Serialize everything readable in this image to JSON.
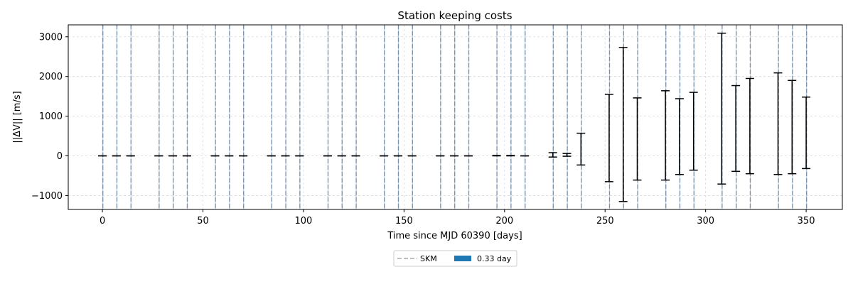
{
  "chart_data": {
    "type": "errorbar",
    "title": "Station keeping costs",
    "xlabel": "Time since MJD 60390 [days]",
    "ylabel": "||ΔV|| [m/s]",
    "xlim": [
      -17,
      368
    ],
    "ylim": [
      -1350,
      3300
    ],
    "xticks": [
      0,
      50,
      100,
      150,
      200,
      250,
      300,
      350
    ],
    "yticks": [
      -1000,
      0,
      1000,
      2000,
      3000
    ],
    "grid": true,
    "legend": {
      "placement": "bottom-center",
      "entries": [
        {
          "label": "SKM",
          "style": "dashed-line",
          "color": "#aaaaaa"
        },
        {
          "label": "0.33 day",
          "style": "patch",
          "color": "#1f77b4"
        }
      ]
    },
    "skm_times": [
      0,
      7,
      14,
      28,
      35,
      42,
      56,
      63,
      70,
      84,
      91,
      98,
      112,
      119,
      126,
      140,
      147,
      154,
      168,
      175,
      182,
      196,
      203,
      210,
      224,
      231,
      238,
      252,
      259,
      266,
      280,
      287,
      294,
      308,
      315,
      322,
      336,
      343,
      350
    ],
    "window_days": 0.33,
    "error_bars": [
      {
        "x": 0,
        "low": 0,
        "high": 0
      },
      {
        "x": 7,
        "low": 0,
        "high": 0
      },
      {
        "x": 14,
        "low": 0,
        "high": 0
      },
      {
        "x": 28,
        "low": 0,
        "high": 0
      },
      {
        "x": 35,
        "low": 0,
        "high": 0
      },
      {
        "x": 42,
        "low": 0,
        "high": 0
      },
      {
        "x": 56,
        "low": 0,
        "high": 0
      },
      {
        "x": 63,
        "low": 0,
        "high": 0
      },
      {
        "x": 70,
        "low": 0,
        "high": 0
      },
      {
        "x": 84,
        "low": 0,
        "high": 0
      },
      {
        "x": 91,
        "low": 0,
        "high": 0
      },
      {
        "x": 98,
        "low": 0,
        "high": 0
      },
      {
        "x": 112,
        "low": 0,
        "high": 0
      },
      {
        "x": 119,
        "low": 0,
        "high": 0
      },
      {
        "x": 126,
        "low": 0,
        "high": 0
      },
      {
        "x": 140,
        "low": 0,
        "high": 0
      },
      {
        "x": 147,
        "low": 0,
        "high": 0
      },
      {
        "x": 154,
        "low": 0,
        "high": 0
      },
      {
        "x": 168,
        "low": 0,
        "high": 0
      },
      {
        "x": 175,
        "low": 0,
        "high": 0
      },
      {
        "x": 182,
        "low": 0,
        "high": 0
      },
      {
        "x": 196,
        "low": 0,
        "high": 10
      },
      {
        "x": 203,
        "low": 0,
        "high": 10
      },
      {
        "x": 210,
        "low": 0,
        "high": 0
      },
      {
        "x": 224,
        "low": -30,
        "high": 80
      },
      {
        "x": 231,
        "low": -10,
        "high": 60
      },
      {
        "x": 238,
        "low": -230,
        "high": 570
      },
      {
        "x": 252,
        "low": -650,
        "high": 1550
      },
      {
        "x": 259,
        "low": -1150,
        "high": 2730
      },
      {
        "x": 266,
        "low": -610,
        "high": 1460
      },
      {
        "x": 280,
        "low": -610,
        "high": 1640
      },
      {
        "x": 287,
        "low": -470,
        "high": 1440
      },
      {
        "x": 294,
        "low": -360,
        "high": 1600
      },
      {
        "x": 308,
        "low": -710,
        "high": 3090
      },
      {
        "x": 315,
        "low": -390,
        "high": 1770
      },
      {
        "x": 322,
        "low": -450,
        "high": 1950
      },
      {
        "x": 336,
        "low": -470,
        "high": 2090
      },
      {
        "x": 343,
        "low": -450,
        "high": 1900
      },
      {
        "x": 350,
        "low": -320,
        "high": 1480
      }
    ]
  }
}
